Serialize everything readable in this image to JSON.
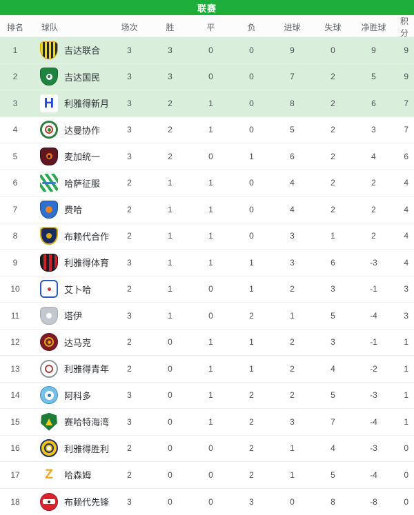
{
  "title": "联赛",
  "colors": {
    "header_green": "#1eae3c",
    "highlight_row_green": "#d9efdc",
    "row_separator": "#ededed",
    "header_text": "#5f6368",
    "body_text": "#4a4d52"
  },
  "columns": [
    "排名",
    "球队",
    "场次",
    "胜",
    "平",
    "负",
    "进球",
    "失球",
    "净胜球",
    "积分"
  ],
  "standings": [
    {
      "rank": 1,
      "team": "吉达联合",
      "logo": "al-ittihad",
      "played": 3,
      "won": 3,
      "drawn": 0,
      "lost": 0,
      "goals_for": 9,
      "goals_against": 0,
      "goal_diff": 9,
      "points": 9,
      "highlight": true
    },
    {
      "rank": 2,
      "team": "吉达国民",
      "logo": "al-ahli",
      "played": 3,
      "won": 3,
      "drawn": 0,
      "lost": 0,
      "goals_for": 7,
      "goals_against": 2,
      "goal_diff": 5,
      "points": 9,
      "highlight": true
    },
    {
      "rank": 3,
      "team": "利雅得新月",
      "logo": "al-hilal",
      "played": 3,
      "won": 2,
      "drawn": 1,
      "lost": 0,
      "goals_for": 8,
      "goals_against": 2,
      "goal_diff": 6,
      "points": 7,
      "highlight": true
    },
    {
      "rank": 4,
      "team": "达曼协作",
      "logo": "al-ettifaq",
      "played": 3,
      "won": 2,
      "drawn": 1,
      "lost": 0,
      "goals_for": 5,
      "goals_against": 2,
      "goal_diff": 3,
      "points": 7,
      "highlight": false
    },
    {
      "rank": 5,
      "team": "麦加统一",
      "logo": "al-wehda",
      "played": 3,
      "won": 2,
      "drawn": 0,
      "lost": 1,
      "goals_for": 6,
      "goals_against": 2,
      "goal_diff": 4,
      "points": 6,
      "highlight": false
    },
    {
      "rank": 6,
      "team": "哈萨征服",
      "logo": "al-fateh",
      "played": 2,
      "won": 1,
      "drawn": 1,
      "lost": 0,
      "goals_for": 4,
      "goals_against": 2,
      "goal_diff": 2,
      "points": 4,
      "highlight": false
    },
    {
      "rank": 7,
      "team": "费哈",
      "logo": "al-feiha",
      "played": 2,
      "won": 1,
      "drawn": 1,
      "lost": 0,
      "goals_for": 4,
      "goals_against": 2,
      "goal_diff": 2,
      "points": 4,
      "highlight": false
    },
    {
      "rank": 8,
      "team": "布赖代合作",
      "logo": "al-taawoun",
      "played": 2,
      "won": 1,
      "drawn": 1,
      "lost": 0,
      "goals_for": 3,
      "goals_against": 1,
      "goal_diff": 2,
      "points": 4,
      "highlight": false
    },
    {
      "rank": 9,
      "team": "利雅得体育",
      "logo": "al-riyadh",
      "played": 3,
      "won": 1,
      "drawn": 1,
      "lost": 1,
      "goals_for": 3,
      "goals_against": 6,
      "goal_diff": -3,
      "points": 4,
      "highlight": false
    },
    {
      "rank": 10,
      "team": "艾卜哈",
      "logo": "abha",
      "played": 2,
      "won": 1,
      "drawn": 0,
      "lost": 1,
      "goals_for": 2,
      "goals_against": 3,
      "goal_diff": -1,
      "points": 3,
      "highlight": false
    },
    {
      "rank": 11,
      "team": "塔伊",
      "logo": "al-tai",
      "played": 3,
      "won": 1,
      "drawn": 0,
      "lost": 2,
      "goals_for": 1,
      "goals_against": 5,
      "goal_diff": -4,
      "points": 3,
      "highlight": false
    },
    {
      "rank": 12,
      "team": "达马克",
      "logo": "damac",
      "played": 2,
      "won": 0,
      "drawn": 1,
      "lost": 1,
      "goals_for": 2,
      "goals_against": 3,
      "goal_diff": -1,
      "points": 1,
      "highlight": false
    },
    {
      "rank": 13,
      "team": "利雅得青年",
      "logo": "al-shabab",
      "played": 2,
      "won": 0,
      "drawn": 1,
      "lost": 1,
      "goals_for": 2,
      "goals_against": 4,
      "goal_diff": -2,
      "points": 1,
      "highlight": false
    },
    {
      "rank": 14,
      "team": "阿科多",
      "logo": "al-akhdoud",
      "played": 3,
      "won": 0,
      "drawn": 1,
      "lost": 2,
      "goals_for": 2,
      "goals_against": 5,
      "goal_diff": -3,
      "points": 1,
      "highlight": false
    },
    {
      "rank": 15,
      "team": "赛哈特海湾",
      "logo": "al-khaleej",
      "played": 3,
      "won": 0,
      "drawn": 1,
      "lost": 2,
      "goals_for": 3,
      "goals_against": 7,
      "goal_diff": -4,
      "points": 1,
      "highlight": false
    },
    {
      "rank": 16,
      "team": "利雅得胜利",
      "logo": "al-nassr",
      "played": 2,
      "won": 0,
      "drawn": 0,
      "lost": 2,
      "goals_for": 1,
      "goals_against": 4,
      "goal_diff": -3,
      "points": 0,
      "highlight": false
    },
    {
      "rank": 17,
      "team": "哈森姆",
      "logo": "al-hazem",
      "played": 2,
      "won": 0,
      "drawn": 0,
      "lost": 2,
      "goals_for": 1,
      "goals_against": 5,
      "goal_diff": -4,
      "points": 0,
      "highlight": false
    },
    {
      "rank": 18,
      "team": "布赖代先锋",
      "logo": "al-raed",
      "played": 3,
      "won": 0,
      "drawn": 0,
      "lost": 3,
      "goals_for": 0,
      "goals_against": 8,
      "goal_diff": -8,
      "points": 0,
      "highlight": false
    }
  ],
  "logos": {
    "al-ittihad": {
      "shape": "shield",
      "stripes": {
        "angle": 90,
        "c1": "#f3d908",
        "c2": "#2a2a20",
        "w": 3
      },
      "border": {
        "color": "#caa50a",
        "w": 1
      }
    },
    "al-ahli": {
      "shape": "shield",
      "bg": "#1f8440",
      "border": {
        "color": "#14632e",
        "w": 1
      },
      "inner": [
        {
          "type": "dot",
          "color": "#ffffff",
          "size": 9
        },
        {
          "type": "dot",
          "color": "#1f8440",
          "size": 4
        }
      ]
    },
    "al-hilal": {
      "shape": "square",
      "bg": "#ffffff",
      "glyph": {
        "char": "H",
        "color": "#2149d6",
        "size": 20
      }
    },
    "al-ettifaq": {
      "shape": "circle",
      "bg": "#ffffff",
      "border": {
        "color": "#2e7d3b",
        "w": 3
      },
      "inner": [
        {
          "type": "ring",
          "color": "#b8402c",
          "size": 12
        },
        {
          "type": "dot",
          "color": "#2e7d3b",
          "size": 5
        }
      ]
    },
    "al-wehda": {
      "shape": "crest",
      "bg": "#5f1722",
      "border": {
        "color": "#3a0d14",
        "w": 1
      },
      "inner": [
        {
          "type": "dot",
          "color": "#e8711c",
          "size": 9
        },
        {
          "type": "dot",
          "color": "#26120c",
          "size": 4
        }
      ]
    },
    "al-fateh": {
      "shape": "square",
      "stripes": {
        "angle": 55,
        "c1": "#ffffff",
        "c2": "#2aa84f",
        "w": 4
      },
      "inner": [
        {
          "type": "band",
          "color": "#3a7ec0",
          "size": 3
        }
      ]
    },
    "al-feiha": {
      "shape": "shield",
      "bg": "#2f6fd0",
      "border": {
        "color": "#1d4f9e",
        "w": 1
      },
      "inner": [
        {
          "type": "dot",
          "color": "#e8841c",
          "size": 10
        }
      ]
    },
    "al-taawoun": {
      "shape": "shield",
      "bg": "#182a5e",
      "border": {
        "color": "#d8ac1c",
        "w": 2
      },
      "inner": [
        {
          "type": "dot",
          "color": "#d8ac1c",
          "size": 8
        }
      ]
    },
    "al-riyadh": {
      "shape": "crest",
      "stripes": {
        "angle": 90,
        "c1": "#1c1c1c",
        "c2": "#cc2229",
        "w": 4
      },
      "border": {
        "color": "#111111",
        "w": 1
      }
    },
    "abha": {
      "shape": "rect",
      "bg": "#ffffff",
      "border": {
        "color": "#2b5cb0",
        "w": 2
      },
      "inner": [
        {
          "type": "dot",
          "color": "#c0392b",
          "size": 5
        }
      ]
    },
    "al-tai": {
      "shape": "crest",
      "bg": "#c3c8cf",
      "border": {
        "color": "#a8adb5",
        "w": 1
      },
      "inner": [
        {
          "type": "dot",
          "color": "#ffffff",
          "size": 8
        }
      ]
    },
    "damac": {
      "shape": "circle",
      "bg": "#801b26",
      "border": {
        "color": "#5a1119",
        "w": 1
      },
      "inner": [
        {
          "type": "ring",
          "color": "#d8a81c",
          "size": 14
        },
        {
          "type": "dot",
          "color": "#d8a81c",
          "size": 5
        }
      ]
    },
    "al-shabab": {
      "shape": "circle",
      "bg": "#ffffff",
      "border": {
        "color": "#8d939c",
        "w": 2
      },
      "inner": [
        {
          "type": "ring",
          "color": "#b3403a",
          "size": 12
        }
      ]
    },
    "al-akhdoud": {
      "shape": "circle",
      "bg": "#74c0e8",
      "border": {
        "color": "#3f8fc0",
        "w": 1
      },
      "inner": [
        {
          "type": "dot",
          "color": "#ffffff",
          "size": 13
        },
        {
          "type": "dot",
          "color": "#2b7ab8",
          "size": 5
        }
      ]
    },
    "al-khaleej": {
      "shape": "drop",
      "bg": "#1d7c37",
      "inner": [
        {
          "type": "tri",
          "color": "#f2cf1c",
          "size": 10
        }
      ]
    },
    "al-nassr": {
      "shape": "circle",
      "bg": "#f2c41d",
      "border": {
        "color": "#20305e",
        "w": 2
      },
      "inner": [
        {
          "type": "ring",
          "color": "#20305e",
          "size": 14
        },
        {
          "type": "dot",
          "color": "#ffffff",
          "size": 6
        }
      ]
    },
    "al-hazem": {
      "shape": "square",
      "bg": "#ffffff",
      "glyph": {
        "char": "Z",
        "color": "#f0a41c",
        "size": 19
      }
    },
    "al-raed": {
      "shape": "circle",
      "bg": "#d8232f",
      "border": {
        "color": "#9e1520",
        "w": 1
      },
      "inner": [
        {
          "type": "band",
          "color": "#ffffff",
          "size": 7
        },
        {
          "type": "dot",
          "color": "#2a2a2a",
          "size": 4
        }
      ]
    }
  }
}
